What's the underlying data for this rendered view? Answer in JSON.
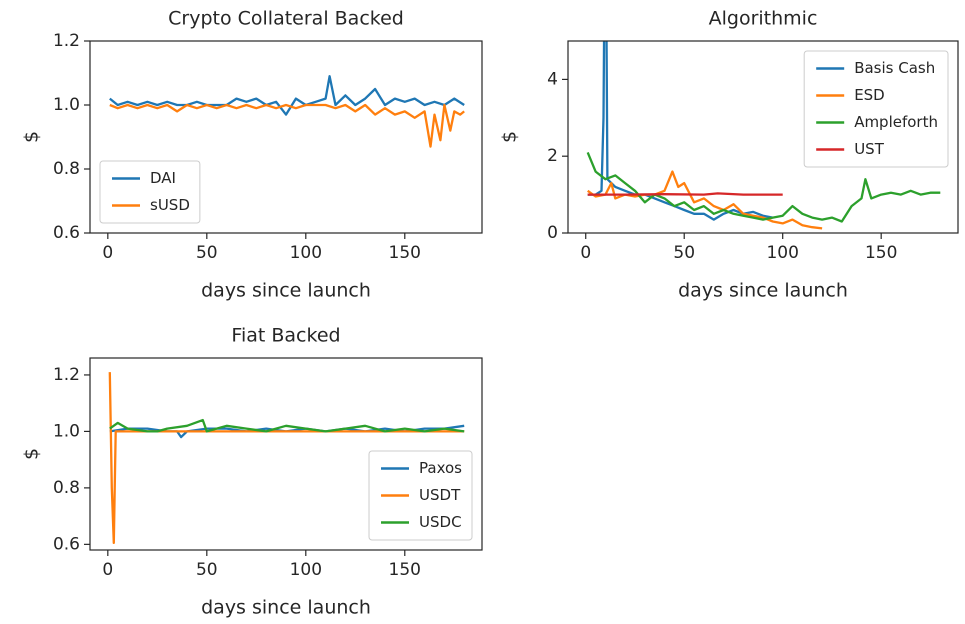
{
  "chart_data": [
    {
      "type": "line",
      "title": "Crypto Collateral Backed",
      "xlabel": "days since launch",
      "ylabel": "$",
      "xlim": [
        -9,
        189
      ],
      "ylim": [
        0.6,
        1.2
      ],
      "xticks": [
        0,
        50,
        100,
        150
      ],
      "yticks": [
        0.6,
        0.8,
        {
          "value": 1,
          "label": "1.0"
        },
        1.2
      ],
      "legend": "lower left",
      "series": [
        {
          "name": "DAI",
          "color": "#1f77b4",
          "x": [
            1,
            5,
            10,
            15,
            20,
            25,
            30,
            35,
            40,
            45,
            50,
            55,
            60,
            65,
            70,
            75,
            80,
            85,
            90,
            95,
            100,
            105,
            110,
            112,
            115,
            120,
            125,
            130,
            135,
            140,
            145,
            150,
            155,
            160,
            165,
            170,
            175,
            180
          ],
          "values": [
            1.02,
            1.0,
            1.01,
            1.0,
            1.01,
            1.0,
            1.01,
            1.0,
            1.0,
            1.01,
            1.0,
            1.0,
            1.0,
            1.02,
            1.01,
            1.02,
            1.0,
            1.01,
            0.97,
            1.02,
            1.0,
            1.01,
            1.02,
            1.09,
            1.0,
            1.03,
            1.0,
            1.02,
            1.05,
            1.0,
            1.02,
            1.01,
            1.02,
            1.0,
            1.01,
            1.0,
            1.02,
            1.0
          ]
        },
        {
          "name": "sUSD",
          "color": "#ff7f0e",
          "x": [
            1,
            5,
            10,
            15,
            20,
            25,
            30,
            35,
            40,
            45,
            50,
            55,
            60,
            65,
            70,
            75,
            80,
            85,
            90,
            95,
            100,
            105,
            110,
            115,
            120,
            125,
            130,
            135,
            140,
            145,
            150,
            155,
            160,
            163,
            165,
            168,
            170,
            173,
            175,
            178,
            180
          ],
          "values": [
            1.0,
            0.99,
            1.0,
            0.99,
            1.0,
            0.99,
            1.0,
            0.98,
            1.0,
            0.99,
            1.0,
            0.99,
            1.0,
            0.99,
            1.0,
            0.99,
            1.0,
            0.99,
            1.0,
            0.99,
            1.0,
            1.0,
            1.0,
            0.99,
            1.0,
            0.98,
            1.0,
            0.97,
            0.99,
            0.97,
            0.98,
            0.96,
            0.98,
            0.87,
            0.97,
            0.89,
            1.0,
            0.92,
            0.98,
            0.97,
            0.98
          ]
        }
      ]
    },
    {
      "type": "line",
      "title": "Algorithmic",
      "xlabel": "days since launch",
      "ylabel": "$",
      "xlim": [
        -9,
        189
      ],
      "ylim": [
        0,
        5
      ],
      "xticks": [
        0,
        50,
        100,
        150
      ],
      "yticks": [
        0,
        2,
        4
      ],
      "legend": "upper right",
      "series": [
        {
          "name": "Basis Cash",
          "color": "#1f77b4",
          "x": [
            1,
            5,
            8,
            9,
            10,
            11,
            15,
            20,
            25,
            30,
            35,
            40,
            45,
            50,
            55,
            60,
            65,
            70,
            75,
            80,
            85,
            90,
            95
          ],
          "values": [
            1.0,
            1.0,
            1.1,
            3,
            10,
            1.4,
            1.2,
            1.1,
            1.0,
            1.0,
            0.9,
            0.8,
            0.7,
            0.6,
            0.5,
            0.5,
            0.35,
            0.5,
            0.6,
            0.5,
            0.55,
            0.45,
            0.4
          ]
        },
        {
          "name": "ESD",
          "color": "#ff7f0e",
          "x": [
            1,
            5,
            10,
            13,
            15,
            20,
            25,
            30,
            35,
            40,
            44,
            47,
            50,
            55,
            60,
            65,
            70,
            75,
            80,
            85,
            90,
            95,
            100,
            105,
            110,
            115,
            120
          ],
          "values": [
            1.1,
            0.95,
            1.0,
            1.3,
            0.9,
            1.0,
            0.95,
            1.0,
            1.0,
            1.1,
            1.6,
            1.2,
            1.3,
            0.8,
            0.9,
            0.7,
            0.6,
            0.75,
            0.5,
            0.45,
            0.4,
            0.3,
            0.25,
            0.35,
            0.2,
            0.15,
            0.12
          ]
        },
        {
          "name": "Ampleforth",
          "color": "#2ca02c",
          "x": [
            1,
            5,
            10,
            15,
            20,
            25,
            30,
            35,
            40,
            45,
            50,
            55,
            60,
            65,
            70,
            75,
            80,
            85,
            90,
            95,
            100,
            105,
            110,
            115,
            120,
            125,
            130,
            135,
            140,
            142,
            145,
            150,
            155,
            160,
            165,
            170,
            175,
            180
          ],
          "values": [
            2.1,
            1.6,
            1.4,
            1.5,
            1.3,
            1.1,
            0.8,
            1.0,
            0.9,
            0.7,
            0.8,
            0.6,
            0.7,
            0.5,
            0.6,
            0.5,
            0.45,
            0.4,
            0.35,
            0.4,
            0.45,
            0.7,
            0.5,
            0.4,
            0.35,
            0.4,
            0.3,
            0.7,
            0.9,
            1.4,
            0.9,
            1.0,
            1.05,
            1.0,
            1.1,
            1.0,
            1.05,
            1.05
          ]
        },
        {
          "name": "UST",
          "color": "#d62728",
          "x": [
            1,
            20,
            40,
            60,
            67,
            80,
            100
          ],
          "values": [
            1.0,
            1.0,
            1.01,
            1.0,
            1.03,
            1.0,
            1.0
          ]
        }
      ]
    },
    {
      "type": "line",
      "title": "Fiat Backed",
      "xlabel": "days since launch",
      "ylabel": "$",
      "xlim": [
        -9,
        189
      ],
      "ylim": [
        0.58,
        1.26
      ],
      "xticks": [
        0,
        50,
        100,
        150
      ],
      "yticks": [
        0.6,
        0.8,
        {
          "value": 1,
          "label": "1.0"
        },
        1.2
      ],
      "legend": "lower right",
      "series": [
        {
          "name": "Paxos",
          "color": "#1f77b4",
          "x": [
            1,
            10,
            20,
            30,
            35,
            37,
            40,
            50,
            60,
            70,
            80,
            90,
            100,
            110,
            120,
            130,
            140,
            150,
            160,
            170,
            180
          ],
          "values": [
            1.0,
            1.01,
            1.01,
            1.0,
            1.0,
            0.98,
            1.0,
            1.01,
            1.01,
            1.0,
            1.01,
            1.0,
            1.01,
            1.0,
            1.01,
            1.0,
            1.01,
            1.0,
            1.01,
            1.01,
            1.02
          ]
        },
        {
          "name": "USDT",
          "color": "#ff7f0e",
          "x": [
            1,
            2,
            3,
            4,
            10,
            50,
            100,
            150,
            180
          ],
          "values": [
            1.21,
            0.8,
            0.605,
            1.0,
            1.0,
            1.0,
            1.0,
            1.0,
            1.0
          ]
        },
        {
          "name": "USDC",
          "color": "#2ca02c",
          "x": [
            1,
            5,
            10,
            20,
            25,
            30,
            40,
            48,
            50,
            60,
            70,
            80,
            90,
            100,
            110,
            120,
            130,
            140,
            150,
            160,
            170,
            180
          ],
          "values": [
            1.01,
            1.03,
            1.01,
            1.0,
            1.0,
            1.01,
            1.02,
            1.04,
            1.0,
            1.02,
            1.01,
            1.0,
            1.02,
            1.01,
            1.0,
            1.01,
            1.02,
            1.0,
            1.01,
            1.0,
            1.01,
            1.0
          ]
        }
      ]
    }
  ]
}
